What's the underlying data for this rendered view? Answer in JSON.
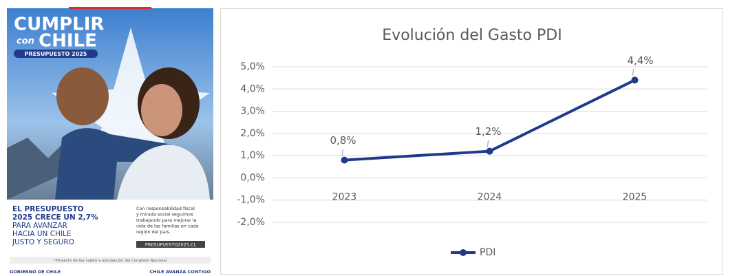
{
  "poster": {
    "title_top": "CUMPLIR",
    "title_con": "con",
    "title_bottom": "CHILE",
    "badge": "PRESUPUESTO 2025",
    "headline_bold": [
      "EL PRESUPUESTO",
      "2025 CRECE UN 2,7%"
    ],
    "headline": [
      "PARA AVANZAR",
      "HACIA UN CHILE",
      "JUSTO Y SEGURO"
    ],
    "side_text": [
      "Con responsabilidad fiscal",
      "y mirada social seguimos",
      "trabajando para mejorar la",
      "vida de las familias en cada",
      "región del país."
    ],
    "url": "PRESUPUESTO2025.CL",
    "footnote": "*Proyecto de ley sujeto a aprobación del Congreso Nacional",
    "footer_left": "GOBIERNO DE CHILE",
    "footer_right": "CHILE AVANZA CONTIGO"
  },
  "chart_data": {
    "type": "line",
    "title": "Evolución del Gasto PDI",
    "categories": [
      "2023",
      "2024",
      "2025"
    ],
    "series": [
      {
        "name": "PDI",
        "color": "#1f3a8a",
        "values": [
          0.8,
          1.2,
          4.4
        ],
        "value_labels": [
          "0,8%",
          "1,2%",
          "4,4%"
        ]
      }
    ],
    "ylim": [
      -2,
      5
    ],
    "yticks": [
      {
        "value": -2,
        "label": "-2,0%"
      },
      {
        "value": -1,
        "label": "-1,0%"
      },
      {
        "value": 0,
        "label": "0,0%"
      },
      {
        "value": 1,
        "label": "1,0%"
      },
      {
        "value": 2,
        "label": "2,0%"
      },
      {
        "value": 3,
        "label": "3,0%"
      },
      {
        "value": 4,
        "label": "4,0%"
      },
      {
        "value": 5,
        "label": "5,0%"
      }
    ],
    "grid": true,
    "legend": "bottom"
  }
}
